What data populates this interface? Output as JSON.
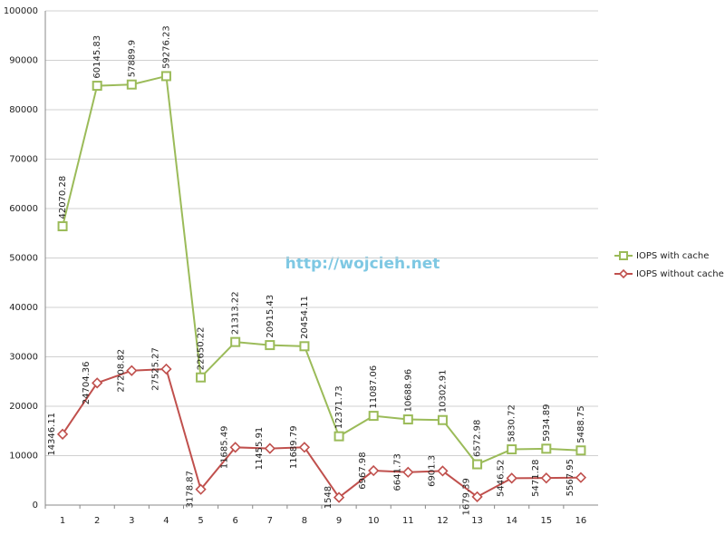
{
  "chart_data": {
    "type": "stacked-line",
    "watermark": "http://wojcieh.net",
    "categories": [
      "1",
      "2",
      "3",
      "4",
      "5",
      "6",
      "7",
      "8",
      "9",
      "10",
      "11",
      "12",
      "13",
      "14",
      "15",
      "16"
    ],
    "series": [
      {
        "name": "IOPS without cache",
        "color": "#c0504d",
        "marker": "diamond",
        "values": [
          14346.11,
          24704.36,
          27208.82,
          27525.27,
          3178.87,
          11685.49,
          11455.91,
          11689.79,
          1548,
          6967.98,
          6641.73,
          6901.3,
          1679.39,
          5446.52,
          5471.28,
          5567.95
        ]
      },
      {
        "name": "IOPS with cache",
        "color": "#9bbb59",
        "marker": "square",
        "values": [
          42070.28,
          60145.83,
          57889.9,
          59276.23,
          22650.22,
          21313.22,
          20915.43,
          20454.11,
          12371.73,
          11087.06,
          10688.96,
          10302.91,
          6572.98,
          5830.72,
          5934.89,
          5488.75
        ]
      }
    ],
    "ylim": [
      0,
      100000
    ],
    "yticks": [
      0,
      10000,
      20000,
      30000,
      40000,
      50000,
      60000,
      70000,
      80000,
      90000,
      100000
    ],
    "grid": true,
    "legend": "right"
  }
}
